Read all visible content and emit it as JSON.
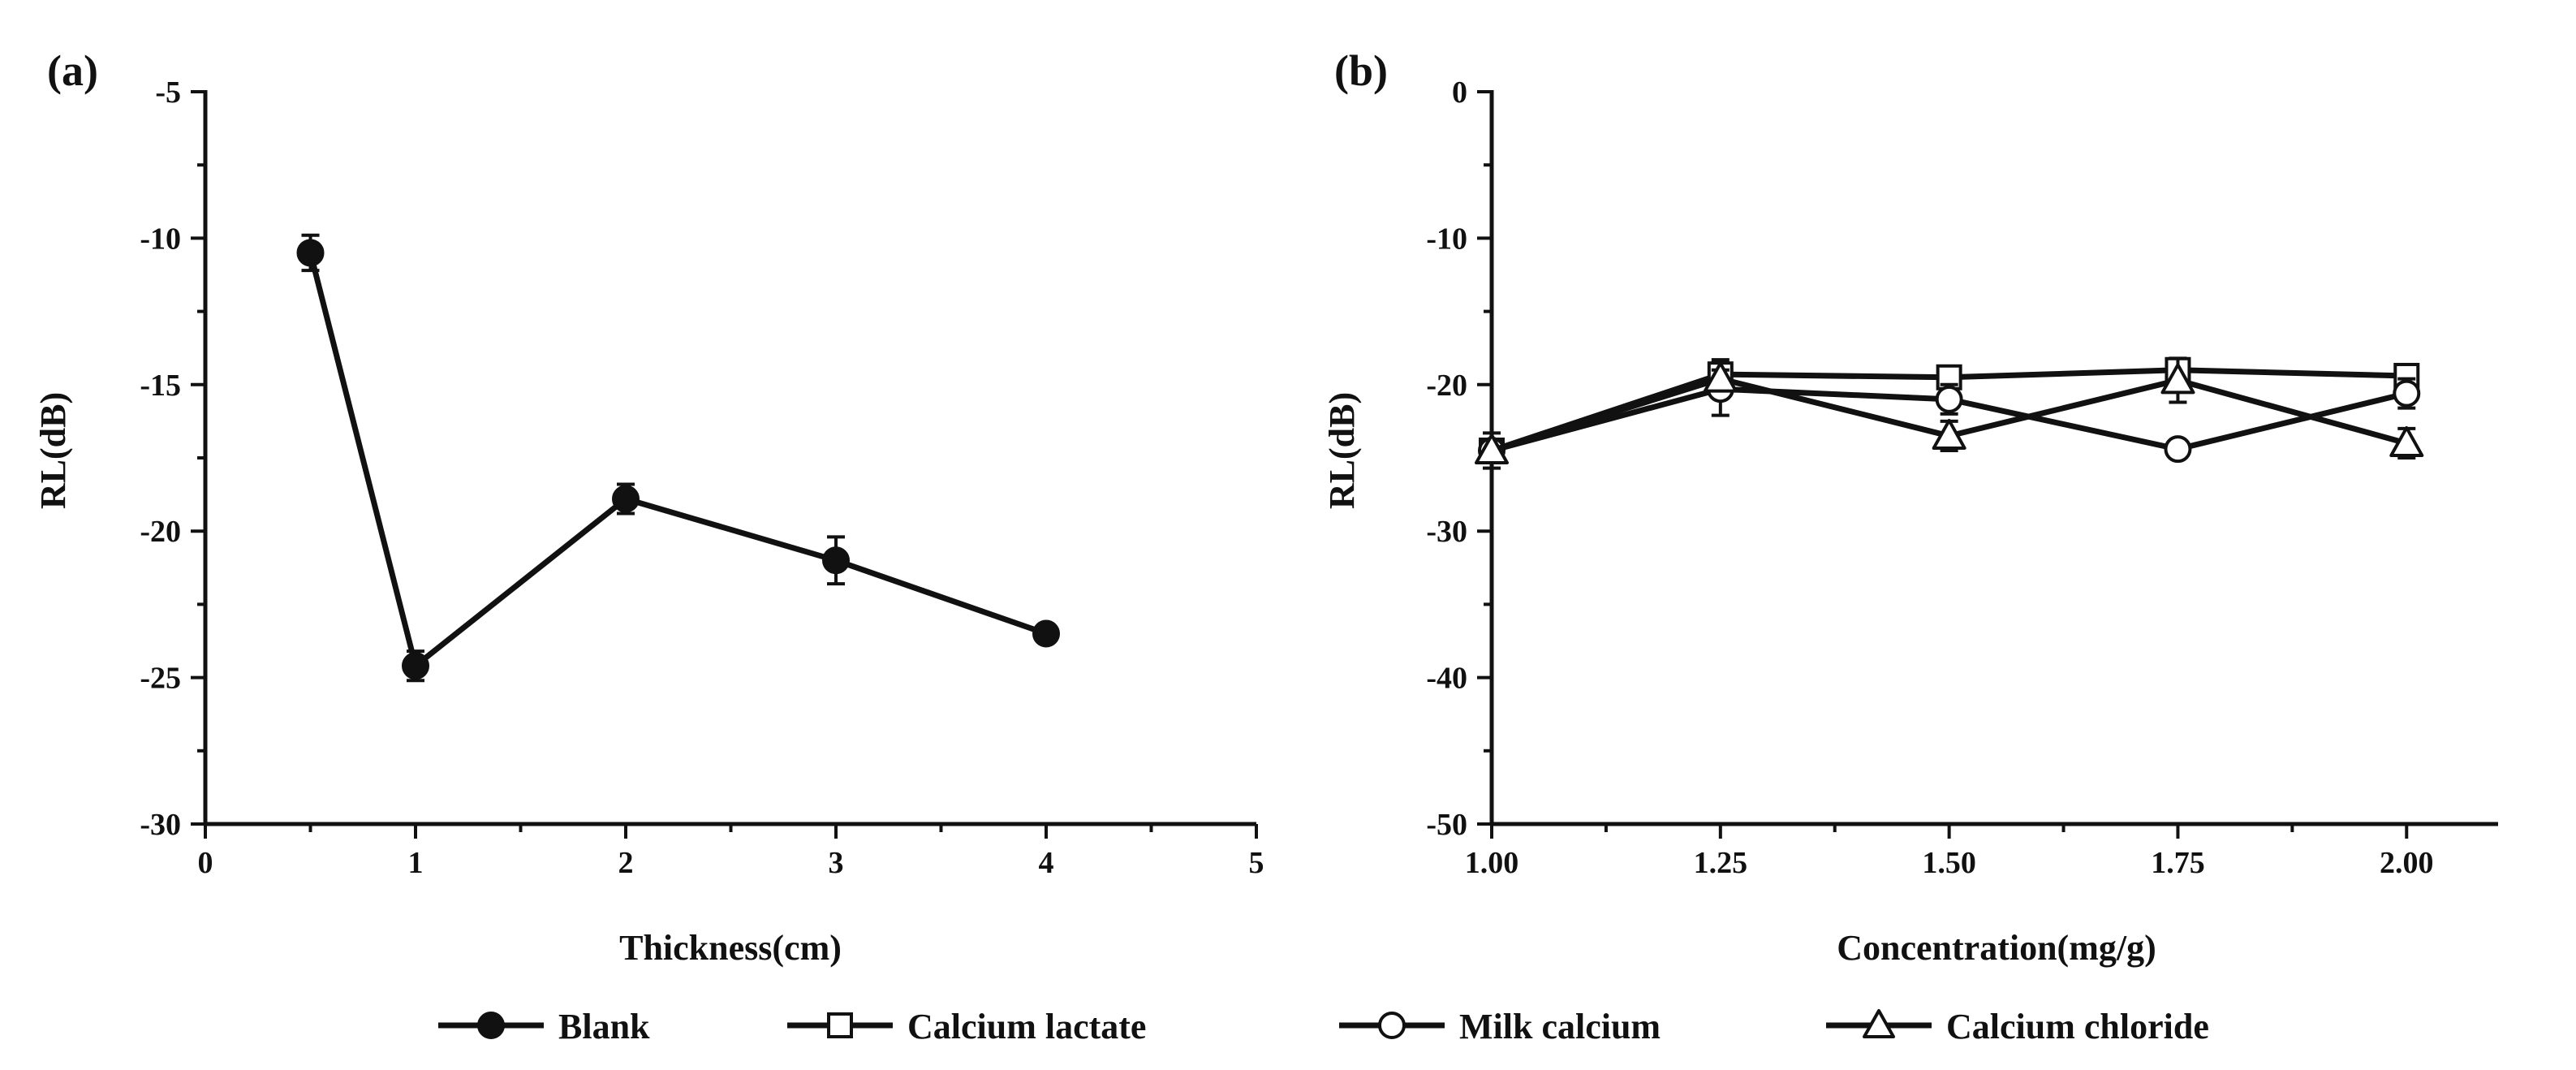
{
  "chart_data": [
    {
      "type": "line",
      "panel": "(a)",
      "xlabel": "Thickness(cm)",
      "ylabel": "RL(dB)",
      "xlim": [
        0,
        5
      ],
      "ylim": [
        -30,
        -5
      ],
      "xticks": [
        0,
        1,
        2,
        3,
        4,
        5
      ],
      "xtick_labels": [
        "0",
        "1",
        "2",
        "3",
        "4",
        "5"
      ],
      "yticks": [
        -30,
        -25,
        -20,
        -15,
        -10,
        -5
      ],
      "ytick_labels": [
        "-30",
        "-25",
        "-20",
        "-15",
        "-10",
        "-5"
      ],
      "series": [
        {
          "name": "Blank",
          "marker": "circle-filled",
          "x": [
            0.5,
            1,
            2,
            3,
            4
          ],
          "y": [
            -10.5,
            -24.6,
            -18.9,
            -21.0,
            -23.5
          ],
          "err": [
            0.6,
            0.5,
            0.5,
            0.8,
            0.3
          ]
        }
      ]
    },
    {
      "type": "line",
      "panel": "(b)",
      "xlabel": "Concentration(mg/g)",
      "ylabel": "RL(dB)",
      "xlim": [
        1.0,
        2.1
      ],
      "ylim": [
        -50,
        0
      ],
      "xticks": [
        1.0,
        1.25,
        1.5,
        1.75,
        2.0
      ],
      "xtick_labels": [
        "1.00",
        "1.25",
        "1.50",
        "1.75",
        "2.00"
      ],
      "yticks": [
        -50,
        -40,
        -30,
        -20,
        -10,
        0
      ],
      "ytick_labels": [
        "-50",
        "-40",
        "-30",
        "-20",
        "-10",
        "0"
      ],
      "series": [
        {
          "name": "Calcium lactate",
          "marker": "square-open",
          "x": [
            1.0,
            1.25,
            1.5,
            1.75,
            2.0
          ],
          "y": [
            -24.5,
            -19.3,
            -19.5,
            -19.0,
            -19.4
          ],
          "err": [
            0.5,
            1.0,
            0.6,
            0.7,
            0.5
          ]
        },
        {
          "name": "Milk calcium",
          "marker": "circle-open",
          "x": [
            1.0,
            1.25,
            1.5,
            1.75,
            2.0
          ],
          "y": [
            -24.5,
            -20.3,
            -21.0,
            -24.4,
            -20.6
          ],
          "err": [
            0.5,
            1.8,
            1.0,
            0.4,
            1.0
          ]
        },
        {
          "name": "Calcium chloride",
          "marker": "triangle-open",
          "x": [
            1.0,
            1.25,
            1.5,
            1.75,
            2.0
          ],
          "y": [
            -24.5,
            -19.6,
            -23.5,
            -19.7,
            -24.0
          ],
          "err": [
            1.2,
            0.6,
            1.0,
            1.5,
            1.0
          ]
        }
      ]
    }
  ],
  "legend": {
    "placement": "bottom-center",
    "items": [
      {
        "label": "Blank",
        "marker": "circle-filled"
      },
      {
        "label": "Calcium lactate",
        "marker": "square-open"
      },
      {
        "label": "Milk calcium",
        "marker": "circle-open"
      },
      {
        "label": "Calcium chloride",
        "marker": "triangle-open"
      }
    ]
  }
}
